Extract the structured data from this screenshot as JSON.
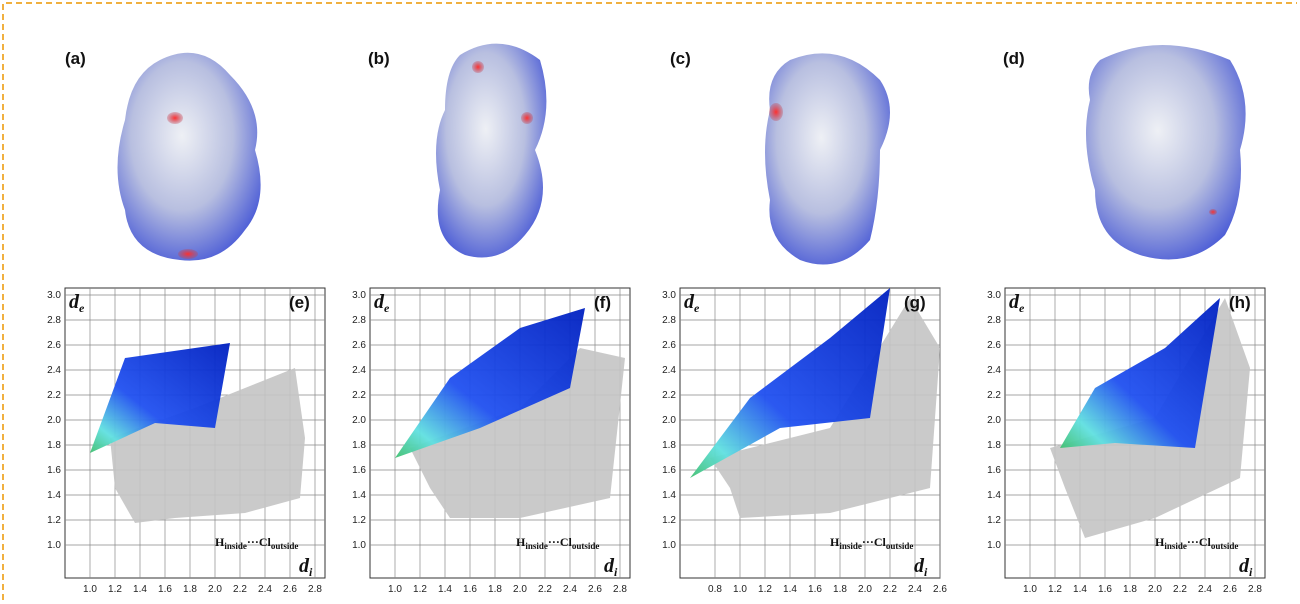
{
  "panels": [
    {
      "label": "(a)"
    },
    {
      "label": "(b)"
    },
    {
      "label": "(c)"
    },
    {
      "label": "(d)"
    }
  ],
  "plots": [
    {
      "label": "(e)",
      "ylabel": "d",
      "ylabel_sub": "e",
      "xlabel": "d",
      "xlabel_sub": "i",
      "note": "H",
      "note_sub1": "inside",
      "note_mid": "···Cl",
      "note_sub2": "outside",
      "xlim": [
        0.8,
        2.8
      ],
      "ylim": [
        0.8,
        3.0
      ],
      "xticks": [
        {
          "value": 1,
          "label": "1.0"
        },
        1.2,
        1.4,
        1.6,
        1.8,
        {
          "value": 2,
          "label": "2.0"
        },
        2.2,
        2.4,
        2.6,
        2.8
      ],
      "yticks": [
        {
          "value": 3,
          "label": "3.0"
        },
        2.8,
        2.6,
        2.4,
        2.2,
        {
          "value": 2,
          "label": "2.0"
        },
        1.8,
        1.6,
        1.4,
        1.2,
        {
          "value": 1,
          "label": "1.0"
        }
      ]
    },
    {
      "label": "(f)",
      "ylabel": "d",
      "ylabel_sub": "e",
      "xlabel": "d",
      "xlabel_sub": "i",
      "note": "H",
      "note_sub1": "inside",
      "note_mid": "···Cl",
      "note_sub2": "outside",
      "xlim": [
        0.8,
        2.8
      ],
      "ylim": [
        0.8,
        3.0
      ],
      "xticks": [
        {
          "value": 1,
          "label": "1.0"
        },
        1.2,
        1.4,
        1.6,
        1.8,
        {
          "value": 2,
          "label": "2.0"
        },
        2.2,
        2.4,
        2.6,
        2.8
      ],
      "yticks": [
        {
          "value": 3,
          "label": "3.0"
        },
        2.8,
        2.6,
        2.4,
        2.2,
        {
          "value": 2,
          "label": "2.0"
        },
        1.8,
        1.6,
        1.4,
        1.2,
        {
          "value": 1,
          "label": "1.0"
        }
      ]
    },
    {
      "label": "(g)",
      "ylabel": "d",
      "ylabel_sub": "e",
      "xlabel": "d",
      "xlabel_sub": "i",
      "note": "H",
      "note_sub1": "inside",
      "note_mid": "···Cl",
      "note_sub2": "outside",
      "xlim": [
        0.6,
        2.6
      ],
      "ylim": [
        0.8,
        3.0
      ],
      "xticks": [
        0.8,
        {
          "value": 1,
          "label": "1.0"
        },
        1.2,
        1.4,
        1.6,
        1.8,
        {
          "value": 2,
          "label": "2.0"
        },
        2.2,
        2.4,
        2.6
      ],
      "yticks": [
        {
          "value": 3,
          "label": "3.0"
        },
        2.8,
        2.6,
        2.4,
        2.2,
        {
          "value": 2,
          "label": "2.0"
        },
        1.8,
        1.6,
        1.4,
        1.2,
        {
          "value": 1,
          "label": "1.0"
        }
      ]
    },
    {
      "label": "(h)",
      "ylabel": "d",
      "ylabel_sub": "e",
      "xlabel": "d",
      "xlabel_sub": "i",
      "note": "H",
      "note_sub1": "inside",
      "note_mid": "···Cl",
      "note_sub2": "outside",
      "xlim": [
        0.8,
        2.8
      ],
      "ylim": [
        0.8,
        3.0
      ],
      "xticks": [
        {
          "value": 1,
          "label": "1.0"
        },
        1.2,
        1.4,
        1.6,
        1.8,
        {
          "value": 2,
          "label": "2.0"
        },
        2.2,
        2.4,
        2.6,
        2.8
      ],
      "yticks": [
        {
          "value": 3,
          "label": "3.0"
        },
        2.8,
        2.6,
        2.4,
        2.2,
        {
          "value": 2,
          "label": "2.0"
        },
        1.8,
        1.6,
        1.4,
        1.2,
        {
          "value": 1,
          "label": "1.0"
        }
      ]
    }
  ]
}
